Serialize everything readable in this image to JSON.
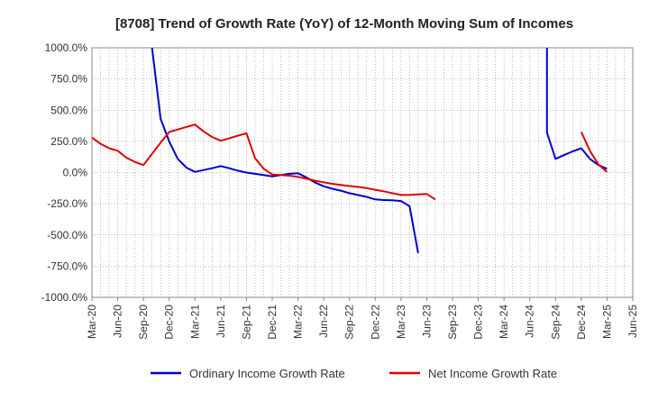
{
  "chart_data": {
    "type": "line",
    "title": "[8708]  Trend of Growth Rate (YoY) of 12-Month Moving Sum of Incomes",
    "xlabel": "",
    "ylabel": "",
    "ylim": [
      -1000,
      1000
    ],
    "y_ticks": [
      1000,
      750,
      500,
      250,
      0,
      -250,
      -500,
      -750,
      -1000
    ],
    "y_tick_labels": [
      "1000.0%",
      "750.0%",
      "500.0%",
      "250.0%",
      "0.0%",
      "-250.0%",
      "-500.0%",
      "-750.0%",
      "-1000.0%"
    ],
    "x_range": [
      "2020-03",
      "2025-06"
    ],
    "x_ticks": [
      "2020-03",
      "2020-06",
      "2020-09",
      "2020-12",
      "2021-03",
      "2021-06",
      "2021-09",
      "2021-12",
      "2022-03",
      "2022-06",
      "2022-09",
      "2022-12",
      "2023-03",
      "2023-06",
      "2023-09",
      "2023-12",
      "2024-03",
      "2024-06",
      "2024-09",
      "2024-12",
      "2025-03",
      "2025-06"
    ],
    "x_tick_labels": [
      "Mar-20",
      "Jun-20",
      "Sep-20",
      "Dec-20",
      "Mar-21",
      "Jun-21",
      "Sep-21",
      "Dec-21",
      "Mar-22",
      "Jun-22",
      "Sep-22",
      "Dec-22",
      "Mar-23",
      "Jun-23",
      "Sep-23",
      "Dec-23",
      "Mar-24",
      "Jun-24",
      "Sep-24",
      "Dec-24",
      "Mar-25",
      "Jun-25"
    ],
    "grid": true,
    "legend_position": "bottom",
    "series": [
      {
        "name": "Ordinary Income Growth Rate",
        "color": "#0000cc",
        "segments": [
          [
            [
              "2020-10",
              1000
            ],
            [
              "2020-11",
              430
            ],
            [
              "2020-12",
              250
            ],
            [
              "2021-01",
              110
            ],
            [
              "2021-02",
              40
            ],
            [
              "2021-03",
              5
            ],
            [
              "2021-04",
              20
            ],
            [
              "2021-05",
              35
            ],
            [
              "2021-06",
              52
            ],
            [
              "2021-07",
              35
            ],
            [
              "2021-08",
              15
            ],
            [
              "2021-09",
              0
            ],
            [
              "2021-10",
              -10
            ],
            [
              "2021-11",
              -20
            ],
            [
              "2021-12",
              -30
            ],
            [
              "2022-01",
              -20
            ],
            [
              "2022-02",
              -10
            ],
            [
              "2022-03",
              -5
            ],
            [
              "2022-04",
              -40
            ],
            [
              "2022-05",
              -80
            ],
            [
              "2022-06",
              -110
            ],
            [
              "2022-07",
              -130
            ],
            [
              "2022-08",
              -145
            ],
            [
              "2022-09",
              -165
            ],
            [
              "2022-10",
              -180
            ],
            [
              "2022-11",
              -195
            ],
            [
              "2022-12",
              -215
            ],
            [
              "2023-01",
              -220
            ],
            [
              "2023-02",
              -222
            ],
            [
              "2023-03",
              -228
            ],
            [
              "2023-04",
              -270
            ],
            [
              "2023-05",
              -645
            ]
          ],
          [
            [
              "2024-08",
              1000
            ],
            [
              "2024-08",
              320
            ],
            [
              "2024-09",
              110
            ],
            [
              "2024-10",
              140
            ],
            [
              "2024-11",
              170
            ],
            [
              "2024-12",
              195
            ],
            [
              "2025-01",
              110
            ],
            [
              "2025-02",
              60
            ],
            [
              "2025-03",
              30
            ]
          ]
        ]
      },
      {
        "name": "Net Income Growth Rate",
        "color": "#e00000",
        "segments": [
          [
            [
              "2020-03",
              280
            ],
            [
              "2020-04",
              230
            ],
            [
              "2020-05",
              195
            ],
            [
              "2020-06",
              175
            ],
            [
              "2020-07",
              120
            ],
            [
              "2020-08",
              85
            ],
            [
              "2020-09",
              60
            ],
            [
              "2020-10",
              150
            ],
            [
              "2020-11",
              240
            ],
            [
              "2020-12",
              325
            ],
            [
              "2021-01",
              345
            ],
            [
              "2021-02",
              365
            ],
            [
              "2021-03",
              385
            ],
            [
              "2021-04",
              330
            ],
            [
              "2021-05",
              285
            ],
            [
              "2021-06",
              255
            ],
            [
              "2021-07",
              275
            ],
            [
              "2021-08",
              295
            ],
            [
              "2021-09",
              315
            ],
            [
              "2021-10",
              115
            ],
            [
              "2021-11",
              30
            ],
            [
              "2021-12",
              -15
            ],
            [
              "2022-01",
              -20
            ],
            [
              "2022-02",
              -25
            ],
            [
              "2022-03",
              -35
            ],
            [
              "2022-04",
              -50
            ],
            [
              "2022-05",
              -65
            ],
            [
              "2022-06",
              -78
            ],
            [
              "2022-07",
              -90
            ],
            [
              "2022-08",
              -100
            ],
            [
              "2022-09",
              -108
            ],
            [
              "2022-10",
              -115
            ],
            [
              "2022-11",
              -125
            ],
            [
              "2022-12",
              -138
            ],
            [
              "2023-01",
              -150
            ],
            [
              "2023-02",
              -165
            ],
            [
              "2023-03",
              -180
            ],
            [
              "2023-04",
              -178
            ],
            [
              "2023-05",
              -175
            ],
            [
              "2023-06",
              -172
            ],
            [
              "2023-07",
              -215
            ]
          ],
          [
            [
              "2024-12",
              325
            ],
            [
              "2025-01",
              175
            ],
            [
              "2025-02",
              65
            ],
            [
              "2025-03",
              5
            ]
          ]
        ]
      }
    ]
  }
}
